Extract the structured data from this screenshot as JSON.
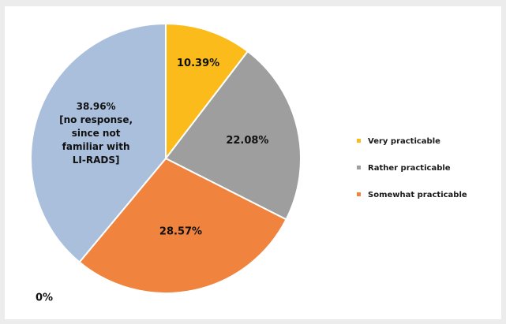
{
  "chart_data": {
    "type": "pie",
    "title": "",
    "categories": [
      "Very practicable",
      "Rather practicable",
      "Somewhat practicable",
      "",
      "no response, since not familiar with LI-RADS"
    ],
    "values": [
      10.39,
      22.08,
      28.57,
      0,
      38.96
    ],
    "slice_labels": [
      [
        "10.39%"
      ],
      [
        "22.08%"
      ],
      [
        "28.57%"
      ],
      [
        "0%"
      ],
      [
        "38.96%",
        "[no response,",
        "since not",
        "familiar with",
        "LI-RADS]"
      ]
    ],
    "colors": [
      "#fbbb1b",
      "#9e9e9e",
      "#f0843e",
      "#f0843e",
      "#a9bfdc"
    ],
    "legend": {
      "position": "right",
      "entries": [
        {
          "label": "Very practicable",
          "color": "#fbbb1b"
        },
        {
          "label": "Rather practicable",
          "color": "#9e9e9e"
        },
        {
          "label": "Somewhat practicable",
          "color": "#f0843e"
        }
      ]
    },
    "start_direction": "12 o'clock",
    "direction": "clockwise"
  }
}
